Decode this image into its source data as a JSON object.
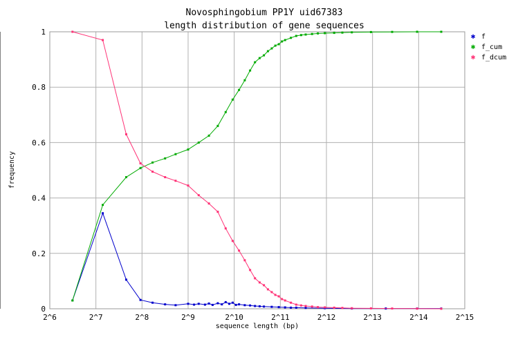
{
  "chart_data": {
    "type": "line",
    "title": "Novosphingobium PP1Y uid67383",
    "subtitle": "length distribution of gene sequences",
    "xlabel": "sequence length (bp)",
    "ylabel": "frequency",
    "x_scale": "log2",
    "xlim": [
      64,
      32768
    ],
    "ylim": [
      0,
      1
    ],
    "x_ticks": [
      "2^6",
      "2^7",
      "2^8",
      "2^9",
      "2^10",
      "2^11",
      "2^12",
      "2^13",
      "2^14",
      "2^15"
    ],
    "y_ticks": [
      "0",
      "0.2",
      "0.4",
      "0.6",
      "0.8",
      "1"
    ],
    "grid": true,
    "legend_position": "right",
    "series": [
      {
        "name": "f",
        "color": "#0000cc",
        "x": [
          90,
          142,
          202,
          250,
          300,
          362,
          424,
          512,
          560,
          600,
          660,
          700,
          740,
          800,
          850,
          900,
          950,
          1000,
          1050,
          1100,
          1200,
          1300,
          1400,
          1500,
          1600,
          1800,
          2000,
          2200,
          2400,
          2600,
          3000,
          4000,
          6000,
          10000,
          16000,
          23000
        ],
        "y": [
          0.03,
          0.345,
          0.105,
          0.032,
          0.022,
          0.016,
          0.013,
          0.018,
          0.015,
          0.018,
          0.015,
          0.019,
          0.014,
          0.02,
          0.016,
          0.024,
          0.018,
          0.022,
          0.014,
          0.016,
          0.013,
          0.012,
          0.01,
          0.009,
          0.008,
          0.007,
          0.006,
          0.005,
          0.004,
          0.004,
          0.003,
          0.002,
          0.001,
          0.001,
          0.001,
          0.001
        ]
      },
      {
        "name": "f_cum",
        "color": "#00aa00",
        "x": [
          90,
          142,
          202,
          250,
          300,
          362,
          424,
          512,
          600,
          700,
          800,
          900,
          1000,
          1100,
          1200,
          1300,
          1400,
          1500,
          1600,
          1700,
          1800,
          1900,
          2000,
          2100,
          2200,
          2400,
          2600,
          2800,
          3000,
          3300,
          3600,
          4000,
          4600,
          5200,
          6000,
          8000,
          11000,
          16000,
          23000
        ],
        "y": [
          0.03,
          0.375,
          0.475,
          0.508,
          0.528,
          0.543,
          0.558,
          0.575,
          0.6,
          0.625,
          0.66,
          0.71,
          0.755,
          0.79,
          0.825,
          0.86,
          0.89,
          0.905,
          0.915,
          0.93,
          0.94,
          0.95,
          0.955,
          0.965,
          0.97,
          0.978,
          0.985,
          0.988,
          0.99,
          0.992,
          0.994,
          0.995,
          0.996,
          0.997,
          0.998,
          0.999,
          0.9995,
          1.0,
          1.0
        ]
      },
      {
        "name": "f_dcum",
        "color": "#ff3377",
        "x": [
          90,
          142,
          202,
          250,
          300,
          362,
          424,
          512,
          600,
          700,
          800,
          900,
          1000,
          1100,
          1200,
          1300,
          1400,
          1500,
          1600,
          1700,
          1800,
          1900,
          2000,
          2100,
          2200,
          2400,
          2600,
          2800,
          3000,
          3300,
          3600,
          4000,
          4600,
          5200,
          6000,
          8000,
          11000,
          16000,
          23000
        ],
        "y": [
          1.0,
          0.97,
          0.63,
          0.525,
          0.495,
          0.475,
          0.462,
          0.445,
          0.41,
          0.38,
          0.35,
          0.29,
          0.245,
          0.21,
          0.175,
          0.14,
          0.11,
          0.095,
          0.085,
          0.07,
          0.06,
          0.05,
          0.045,
          0.035,
          0.03,
          0.022,
          0.015,
          0.012,
          0.01,
          0.008,
          0.006,
          0.005,
          0.004,
          0.003,
          0.002,
          0.0015,
          0.001,
          0.0005,
          0.0
        ]
      }
    ]
  }
}
